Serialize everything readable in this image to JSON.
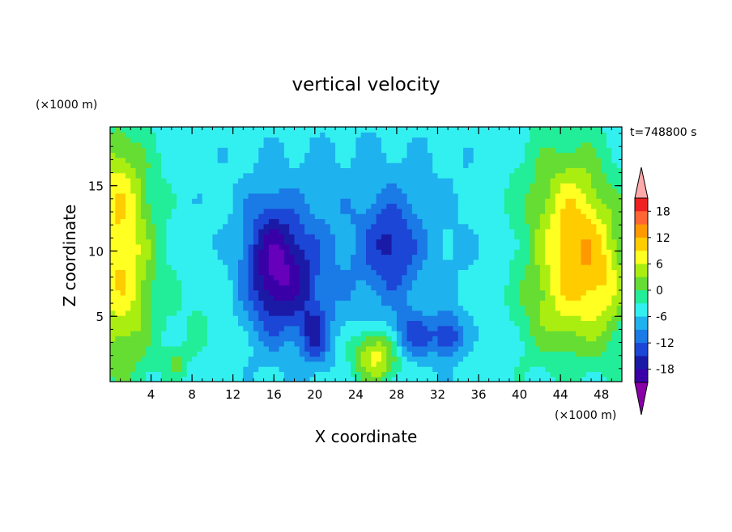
{
  "chart_data": {
    "type": "heatmap",
    "title": "vertical velocity",
    "xlabel": "X coordinate",
    "ylabel": "Z coordinate",
    "x_unit": "(×1000 m)",
    "y_unit": "(×1000 m)",
    "time_label": "t=748800 s",
    "xlim": [
      0,
      50
    ],
    "ylim": [
      0,
      19.5
    ],
    "x_ticks": [
      4,
      8,
      12,
      16,
      20,
      24,
      28,
      32,
      36,
      40,
      44,
      48
    ],
    "y_ticks": [
      5,
      10,
      15
    ],
    "colorbar": {
      "levels": [
        -21,
        -18,
        -15,
        -12,
        -9,
        -6,
        -3,
        0,
        3,
        6,
        9,
        12,
        15,
        18,
        21
      ],
      "tick_labels": [
        "18",
        "12",
        "6",
        "0",
        "-6",
        "-12",
        "-18"
      ],
      "colors": [
        "#6600bb",
        "#3a00a8",
        "#1a1aa6",
        "#1c46d6",
        "#1a7ae6",
        "#1eb2ee",
        "#33f0f0",
        "#22ee99",
        "#66dd33",
        "#aaee11",
        "#ffff22",
        "#ffcc00",
        "#ff9900",
        "#ff6633",
        "#ee2222",
        "#ff3333"
      ],
      "min_arrow_color": "#8a00a8",
      "max_arrow_color": "#ffaaaa"
    },
    "field_features": [
      {
        "x": 1.0,
        "z": 8.5,
        "sx": 2.4,
        "sz": 5.5,
        "w": 13
      },
      {
        "x": 0.5,
        "z": 15.5,
        "sx": 2.0,
        "sz": 3.0,
        "w": 6
      },
      {
        "x": 45.5,
        "z": 9.5,
        "sx": 2.2,
        "sz": 4.5,
        "w": 11
      },
      {
        "x": 48.5,
        "z": 7.5,
        "sx": 1.6,
        "sz": 3.5,
        "w": 8
      },
      {
        "x": 44.0,
        "z": 13.5,
        "sx": 3.5,
        "sz": 4.0,
        "w": 6
      },
      {
        "x": 42.5,
        "z": 5.5,
        "sx": 2.5,
        "sz": 3.0,
        "w": 5
      },
      {
        "x": 26.0,
        "z": 2.0,
        "sx": 1.7,
        "sz": 1.5,
        "w": 13
      },
      {
        "x": 15.5,
        "z": 9.0,
        "sx": 1.8,
        "sz": 3.5,
        "w": -11
      },
      {
        "x": 18.0,
        "z": 8.0,
        "sx": 2.0,
        "sz": 3.0,
        "w": -8
      },
      {
        "x": 20.0,
        "z": 3.5,
        "sx": 1.0,
        "sz": 1.5,
        "w": -8
      },
      {
        "x": 27.5,
        "z": 10.5,
        "sx": 1.8,
        "sz": 2.5,
        "w": -8
      },
      {
        "x": 29.5,
        "z": 3.5,
        "sx": 1.5,
        "sz": 1.2,
        "w": -8
      },
      {
        "x": 33.0,
        "z": 3.5,
        "sx": 1.0,
        "sz": 1.2,
        "w": -9
      },
      {
        "x": 24.0,
        "z": 10.0,
        "sx": 8.0,
        "sz": 6.0,
        "w": -4
      },
      {
        "x": 6.5,
        "z": 1.5,
        "sx": 0.7,
        "sz": 0.8,
        "w": 5
      },
      {
        "x": 9.0,
        "z": 5.0,
        "sx": 2.0,
        "sz": 3.0,
        "w": 2
      }
    ],
    "background_value": -1.5,
    "grid": false
  }
}
